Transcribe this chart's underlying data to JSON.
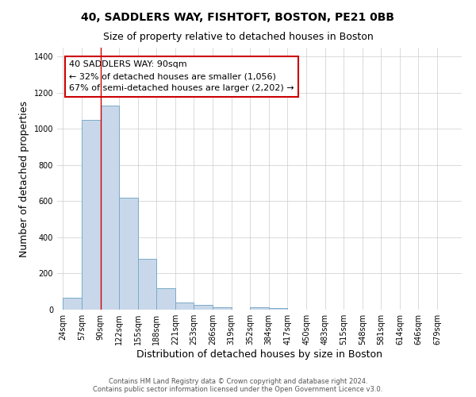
{
  "title": "40, SADDLERS WAY, FISHTOFT, BOSTON, PE21 0BB",
  "subtitle": "Size of property relative to detached houses in Boston",
  "xlabel": "Distribution of detached houses by size in Boston",
  "ylabel": "Number of detached properties",
  "bin_edges": [
    24,
    57,
    90,
    122,
    155,
    188,
    221,
    253,
    286,
    319,
    352,
    384,
    417,
    450,
    483,
    515,
    548,
    581,
    614,
    646,
    679
  ],
  "bin_labels": [
    "24sqm",
    "57sqm",
    "90sqm",
    "122sqm",
    "155sqm",
    "188sqm",
    "221sqm",
    "253sqm",
    "286sqm",
    "319sqm",
    "352sqm",
    "384sqm",
    "417sqm",
    "450sqm",
    "483sqm",
    "515sqm",
    "548sqm",
    "581sqm",
    "614sqm",
    "646sqm",
    "679sqm"
  ],
  "counts": [
    65,
    1050,
    1130,
    620,
    280,
    120,
    40,
    25,
    15,
    0,
    15,
    10,
    0,
    0,
    0,
    0,
    0,
    0,
    0,
    0
  ],
  "bar_color": "#c8d8ea",
  "bar_edge_color": "#7aaac8",
  "red_line_x": 90,
  "annotation_line1": "40 SADDLERS WAY: 90sqm",
  "annotation_line2": "← 32% of detached houses are smaller (1,056)",
  "annotation_line3": "67% of semi-detached houses are larger (2,202) →",
  "box_edge_color": "#cc0000",
  "ylim": [
    0,
    1450
  ],
  "yticks": [
    0,
    200,
    400,
    600,
    800,
    1000,
    1200,
    1400
  ],
  "background_color": "#ffffff",
  "grid_color": "#cccccc",
  "footer_line1": "Contains HM Land Registry data © Crown copyright and database right 2024.",
  "footer_line2": "Contains public sector information licensed under the Open Government Licence v3.0.",
  "title_fontsize": 10,
  "subtitle_fontsize": 9,
  "label_fontsize": 9,
  "tick_fontsize": 7,
  "annotation_fontsize": 8,
  "footer_fontsize": 6
}
